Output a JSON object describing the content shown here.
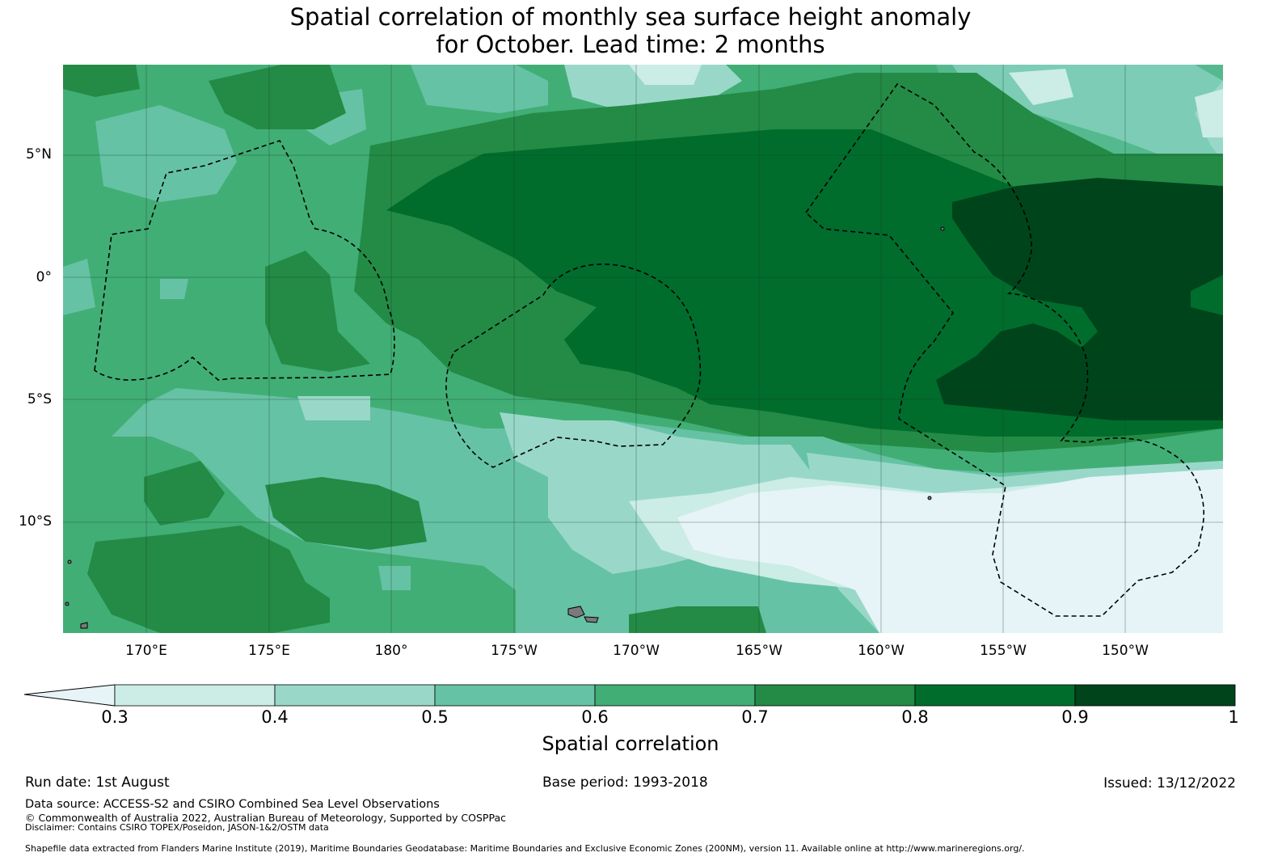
{
  "title": {
    "line1": "Spatial correlation of monthly sea surface height anomaly",
    "line2": "for October. Lead time: 2 months"
  },
  "map": {
    "lon_labels": [
      "170°E",
      "175°E",
      "180°",
      "175°W",
      "170°W",
      "165°W",
      "160°W",
      "155°W",
      "150°W"
    ],
    "lat_labels": [
      "5°N",
      "0°",
      "5°S",
      "10°S"
    ],
    "lon_range": [
      166.6,
      213.9
    ],
    "lat_range": [
      -14.6,
      8.7
    ],
    "gridlines": true,
    "eez_boundaries": "dashed black"
  },
  "colorbar": {
    "label": "Spatial correlation",
    "ticks": [
      "0.3",
      "0.4",
      "0.5",
      "0.6",
      "0.7",
      "0.8",
      "0.9",
      "1"
    ],
    "extend": "min",
    "colors": [
      "#e6f4f8",
      "#ccece6",
      "#99d8c9",
      "#66c2a4",
      "#41ae76",
      "#238b45",
      "#006d2c",
      "#00441b"
    ]
  },
  "footer": {
    "run_date": "Run date: 1st August",
    "base_period": "Base period: 1993-2018",
    "issued": "Issued: 13/12/2022",
    "data_source": "Data source: ACCESS-S2 and CSIRO Combined Sea Level Observations",
    "copyright": "© Commonwealth of Australia 2022, Australian Bureau of Meteorology, Supported by COSPPac",
    "disclaimer": "Disclaimer: Contains CSIRO TOPEX/Poseidon, JASON-1&2/OSTM data",
    "shapefile": "Shapefile data extracted from Flanders Marine Institute (2019), Maritime Boundaries Geodatabase: Maritime Boundaries and Exclusive Economic Zones (200NM), version 11. Available online at http://www.marineregions.org/."
  }
}
